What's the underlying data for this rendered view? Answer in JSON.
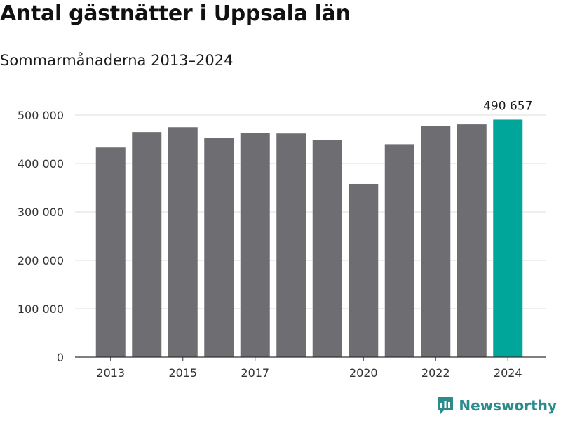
{
  "header": {
    "title": "Antal gästnätter i Uppsala län",
    "subtitle": "Sommarmånaderna 2013–2024"
  },
  "branding": {
    "name": "Newsworthy",
    "icon": "newsworthy-logo-icon",
    "color": "#2c8c8c"
  },
  "chart_data": {
    "type": "bar",
    "categories": [
      "2013",
      "2014",
      "2015",
      "2016",
      "2017",
      "2018",
      "2019",
      "2020",
      "2021",
      "2022",
      "2023",
      "2024"
    ],
    "values": [
      433000,
      465000,
      475000,
      453000,
      463000,
      462000,
      449000,
      358000,
      440000,
      478000,
      481000,
      490657
    ],
    "highlight_index": 11,
    "highlight_label": "490 657",
    "bar_color": "#6e6d72",
    "highlight_color": "#00a69a",
    "ylim": [
      0,
      500000
    ],
    "yticks": [
      {
        "value": 0,
        "label": "0"
      },
      {
        "value": 100000,
        "label": "100 000"
      },
      {
        "value": 200000,
        "label": "200 000"
      },
      {
        "value": 300000,
        "label": "300 000"
      },
      {
        "value": 400000,
        "label": "400 000"
      },
      {
        "value": 500000,
        "label": "500 000"
      }
    ],
    "xtick_labels": [
      "2013",
      "2015",
      "2017",
      "2020",
      "2022",
      "2024"
    ],
    "grid": true,
    "xlabel": "",
    "ylabel": ""
  }
}
